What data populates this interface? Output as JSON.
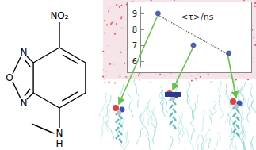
{
  "chart_data": {
    "type": "scatter",
    "title": "<τ>/ns",
    "categories": [
      null,
      null,
      null
    ],
    "series": [
      {
        "values": [
          9.0,
          7.0,
          6.5
        ],
        "color": "#2b3a8c",
        "marker": "circle"
      },
      {
        "type": "line",
        "values": [
          8.9,
          7.65,
          6.4
        ],
        "color": "#555555",
        "line_style": "dotted"
      }
    ],
    "ylim": [
      5.6,
      9.4
    ],
    "yticks": [
      6,
      7,
      8,
      9
    ],
    "tick_labels": "y",
    "grid": false
  },
  "structure": {
    "labels": [
      "NO₂",
      "N",
      "O",
      "N",
      "N",
      "H"
    ]
  }
}
